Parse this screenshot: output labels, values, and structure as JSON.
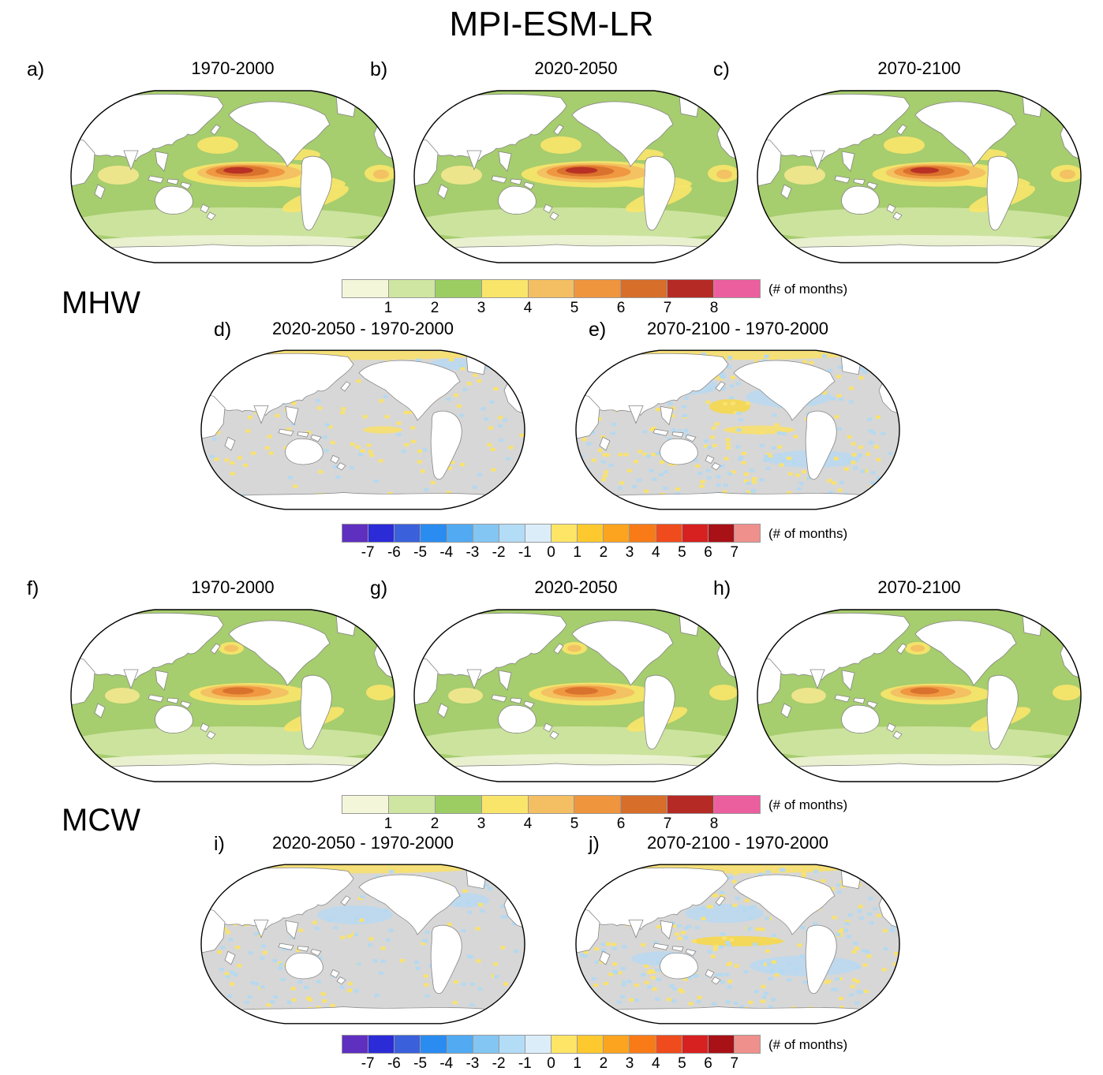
{
  "title": "MPI-ESM-LR",
  "sections": {
    "mhw": "MHW",
    "mcw": "MCW"
  },
  "panels": [
    {
      "id": "a",
      "label": "a)",
      "title": "1970-2000"
    },
    {
      "id": "b",
      "label": "b)",
      "title": "2020-2050"
    },
    {
      "id": "c",
      "label": "c)",
      "title": "2070-2100"
    },
    {
      "id": "d",
      "label": "d)",
      "title": "2020-2050 - 1970-2000"
    },
    {
      "id": "e",
      "label": "e)",
      "title": "2070-2100 - 1970-2000"
    },
    {
      "id": "f",
      "label": "f)",
      "title": "1970-2000"
    },
    {
      "id": "g",
      "label": "g)",
      "title": "2020-2050"
    },
    {
      "id": "h",
      "label": "h)",
      "title": "2070-2100"
    },
    {
      "id": "i",
      "label": "i)",
      "title": "2020-2050 - 1970-2000"
    },
    {
      "id": "j",
      "label": "j)",
      "title": "2070-2100 - 1970-2000"
    }
  ],
  "colorbars": {
    "months": {
      "unit": "(# of months)",
      "ticks": [
        "1",
        "2",
        "3",
        "4",
        "5",
        "6",
        "7",
        "8"
      ],
      "colors": [
        "#f4f6da",
        "#cfe5a2",
        "#9ccd63",
        "#f9e56a",
        "#f3bf62",
        "#ef953e",
        "#d76f2b",
        "#b62a25",
        "#ec5f9f"
      ]
    },
    "diff": {
      "unit": "(# of months)",
      "ticks": [
        "-7",
        "-6",
        "-5",
        "-4",
        "-3",
        "-2",
        "-1",
        "0",
        "1",
        "2",
        "3",
        "4",
        "5",
        "6",
        "7"
      ],
      "colors": [
        "#5f2fc0",
        "#2b2bd8",
        "#3a60db",
        "#2a8cf0",
        "#51aaf2",
        "#83c6f3",
        "#b3dcf6",
        "#dcedfa",
        "#ffe566",
        "#fec92e",
        "#fca41f",
        "#f97b17",
        "#ef4b1c",
        "#d62120",
        "#a81116",
        "#f0908c"
      ]
    }
  },
  "chart_data": {
    "type": "heatmap",
    "title": "MPI-ESM-LR",
    "groups": [
      {
        "name": "MHW",
        "duration_panels": [
          "1970-2000",
          "2020-2050",
          "2070-2100"
        ],
        "difference_panels": [
          "2020-2050 - 1970-2000",
          "2070-2100 - 1970-2000"
        ]
      },
      {
        "name": "MCW",
        "duration_panels": [
          "1970-2000",
          "2020-2050",
          "2070-2100"
        ],
        "difference_panels": [
          "2020-2050 - 1970-2000",
          "2070-2100 - 1970-2000"
        ]
      }
    ],
    "scales": {
      "duration": {
        "unit": "# of months",
        "tick_values": [
          1,
          2,
          3,
          4,
          5,
          6,
          7,
          8
        ],
        "palette": "pale green to green to yellow to orange to dark red to pink"
      },
      "difference": {
        "unit": "# of months",
        "tick_values": [
          -7,
          -6,
          -5,
          -4,
          -3,
          -2,
          -1,
          0,
          1,
          2,
          3,
          4,
          5,
          6,
          7
        ],
        "palette": "purple/blue negative to pale center to yellow/orange/red positive"
      }
    },
    "qualitative_values": {
      "duration_maps": "Most of the global ocean shows 2-3 months; equatorial Pacific maximum reaches 6-8 months, strongest and reddest in the MHW panels, weaker (orange core) in the MCW panels",
      "difference_maps": "Mostly gray (near 0 / masked); scattered patches of about +1 to +2 months (yellow) and -1 to -2 months (light blue), more widespread in the 2070-2100 minus 1970-2000 panels"
    }
  }
}
